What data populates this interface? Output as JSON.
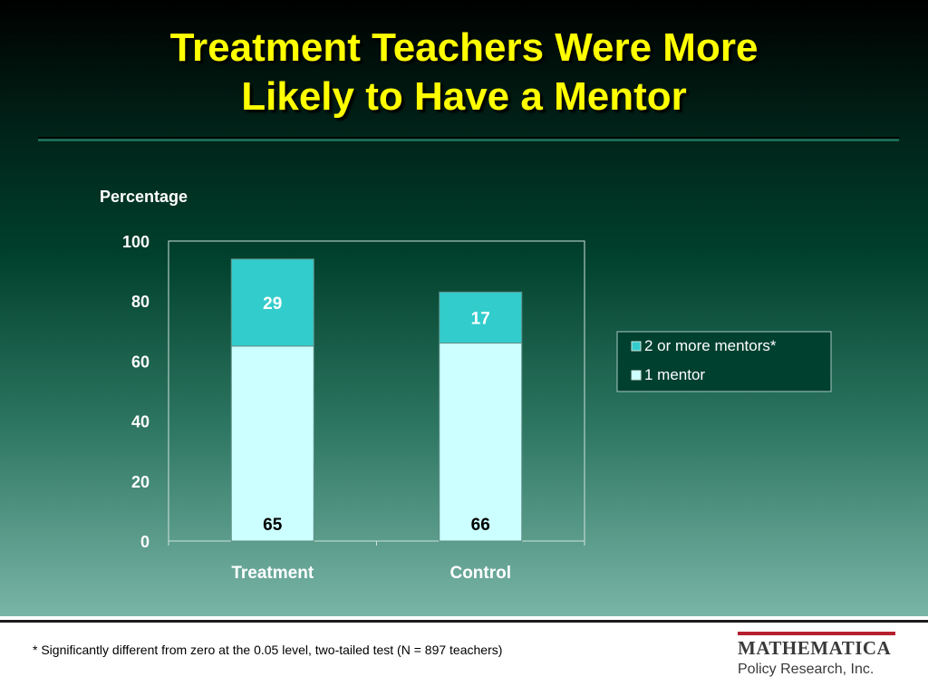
{
  "slide": {
    "title_line1": "Treatment Teachers Were More",
    "title_line2": "Likely to Have a Mentor",
    "footnote": "* Significantly different from zero at the 0.05 level, two-tailed test (N = 897 teachers)",
    "logo_name": "MATHEMATICA",
    "logo_sub": "Policy Research, Inc."
  },
  "colors": {
    "title": "#ffff00",
    "series_1_mentor": "#ccffff",
    "series_2_or_more": "#33cccc",
    "axis_text": "#ffffff",
    "logo_accent": "#b51f2e"
  },
  "chart_data": {
    "type": "bar",
    "stacked": true,
    "categories": [
      "Treatment",
      "Control"
    ],
    "series": [
      {
        "name": "1 mentor",
        "values": [
          65,
          66
        ]
      },
      {
        "name": "2 or more mentors*",
        "values": [
          29,
          17
        ]
      }
    ],
    "title": "",
    "xlabel": "",
    "ylabel": "Percentage",
    "ylim": [
      0,
      100
    ],
    "yticks": [
      0,
      20,
      40,
      60,
      80,
      100
    ],
    "grid": false,
    "legend_position": "right",
    "legend_order": [
      "2 or more mentors*",
      "1 mentor"
    ]
  }
}
